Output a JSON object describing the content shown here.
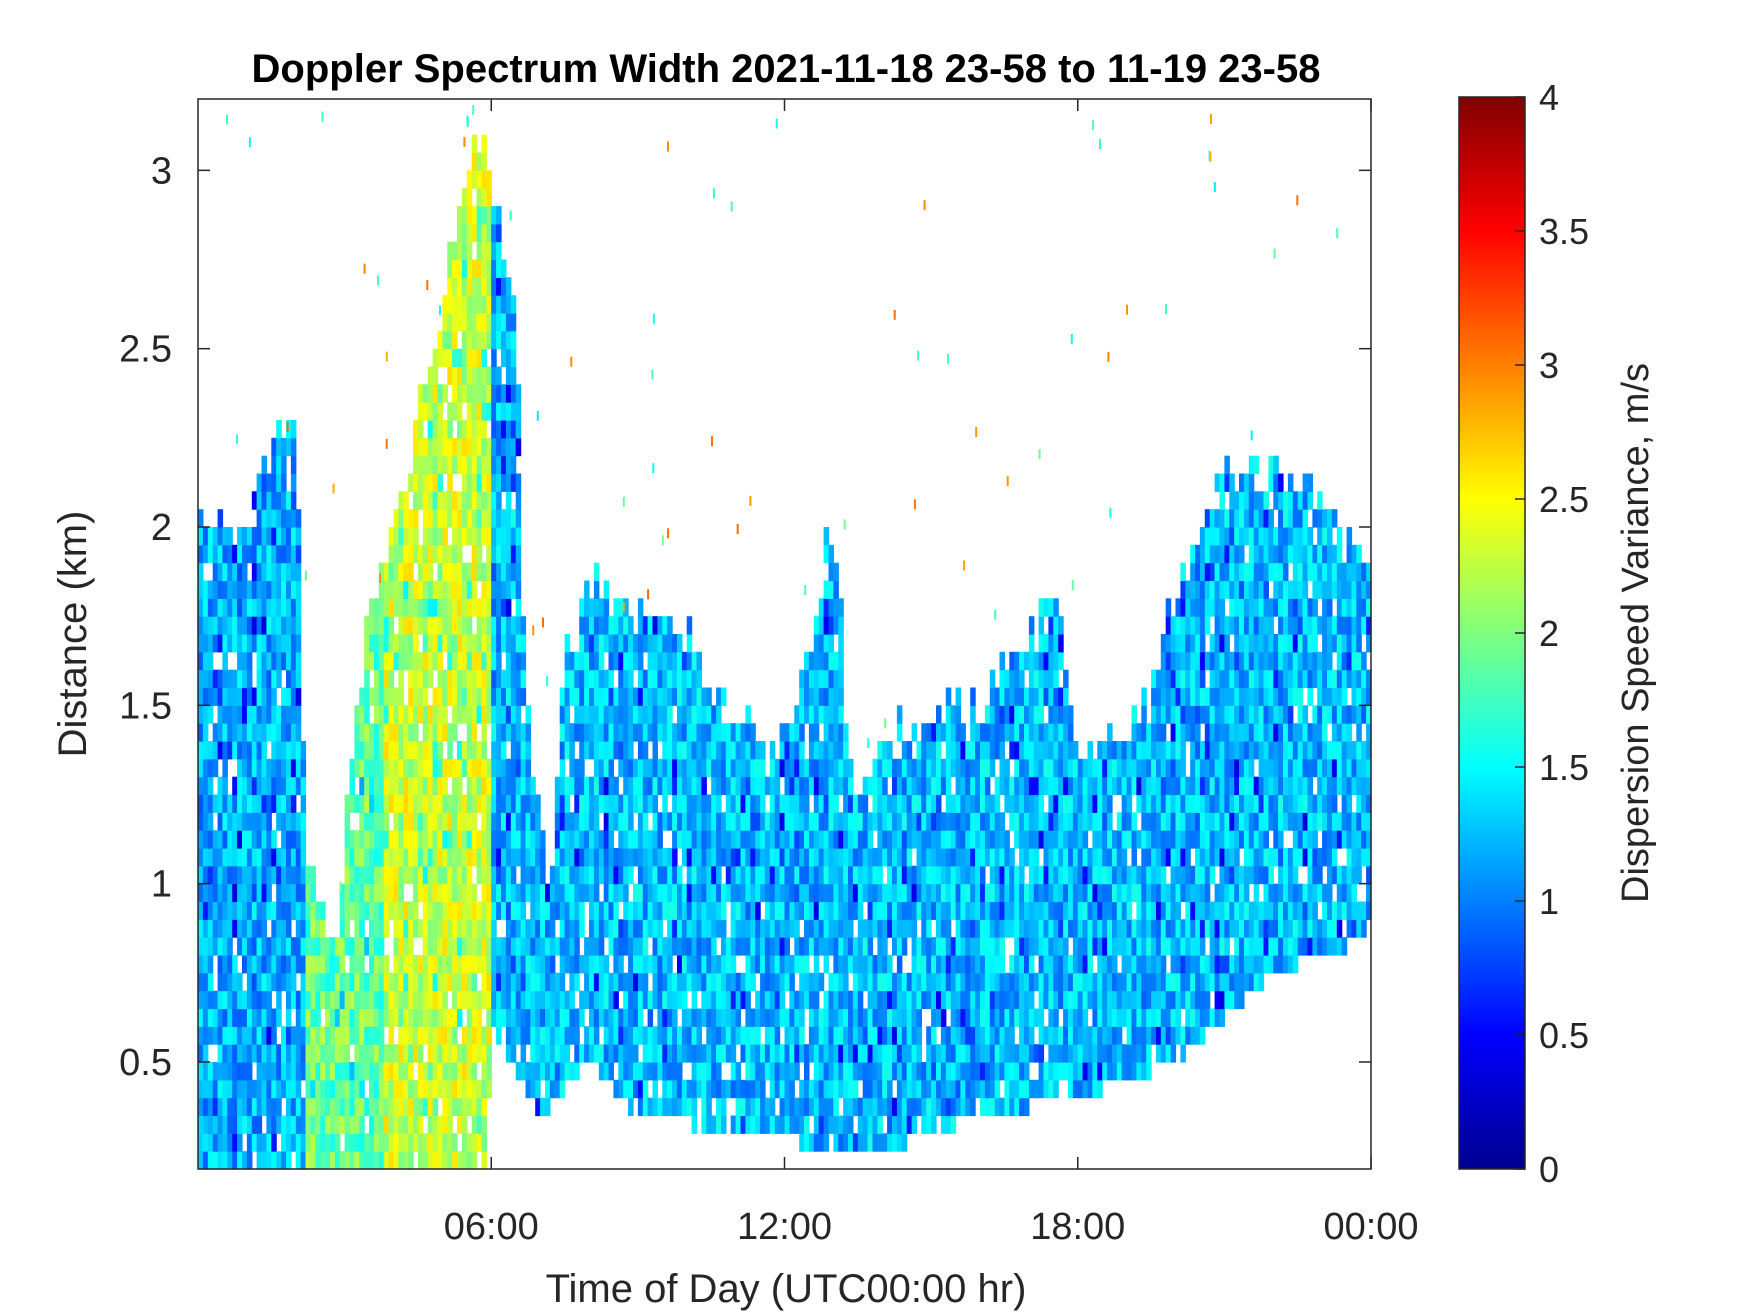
{
  "chart_data": {
    "type": "heatmap",
    "title": "Doppler Spectrum Width 2021-11-18 23-58 to 11-19 23-58",
    "xlabel": "Time of Day (UTC00:00 hr)",
    "ylabel": "Distance (km)",
    "x_ticks": [
      {
        "value": 6,
        "label": "06:00"
      },
      {
        "value": 12,
        "label": "12:00"
      },
      {
        "value": 18,
        "label": "18:00"
      },
      {
        "value": 24,
        "label": "00:00"
      }
    ],
    "y_ticks": [
      {
        "value": 0.5,
        "label": "0.5"
      },
      {
        "value": 1,
        "label": "1"
      },
      {
        "value": 1.5,
        "label": "1.5"
      },
      {
        "value": 2,
        "label": "2"
      },
      {
        "value": 2.5,
        "label": "2.5"
      },
      {
        "value": 3,
        "label": "3"
      }
    ],
    "xlim": [
      0,
      24
    ],
    "ylim": [
      0.2,
      3.2
    ],
    "colorbar": {
      "label": "Dispersion Speed Variance, m/s",
      "colormap": "jet",
      "range": [
        0,
        4
      ],
      "ticks": [
        {
          "value": 0,
          "label": "0"
        },
        {
          "value": 0.5,
          "label": "0.5"
        },
        {
          "value": 1,
          "label": "1"
        },
        {
          "value": 1.5,
          "label": "1.5"
        },
        {
          "value": 2,
          "label": "2"
        },
        {
          "value": 2.5,
          "label": "2.5"
        },
        {
          "value": 3,
          "label": "3"
        },
        {
          "value": 3.5,
          "label": "3.5"
        },
        {
          "value": 4,
          "label": "4"
        }
      ]
    },
    "coverage_top_km": [
      {
        "t": 0.0,
        "top": 2.02
      },
      {
        "t": 1.0,
        "top": 2.02
      },
      {
        "t": 1.5,
        "top": 2.2
      },
      {
        "t": 2.0,
        "top": 2.3
      },
      {
        "t": 2.2,
        "top": 1.1
      },
      {
        "t": 2.8,
        "top": 0.8
      },
      {
        "t": 3.3,
        "top": 1.6
      },
      {
        "t": 3.8,
        "top": 1.9
      },
      {
        "t": 4.5,
        "top": 2.3
      },
      {
        "t": 5.2,
        "top": 2.8
      },
      {
        "t": 5.8,
        "top": 3.1
      },
      {
        "t": 6.2,
        "top": 2.8
      },
      {
        "t": 6.5,
        "top": 2.7
      },
      {
        "t": 6.7,
        "top": 1.5
      },
      {
        "t": 7.2,
        "top": 1.0
      },
      {
        "t": 7.5,
        "top": 1.6
      },
      {
        "t": 8.0,
        "top": 1.85
      },
      {
        "t": 9.0,
        "top": 1.75
      },
      {
        "t": 10.0,
        "top": 1.7
      },
      {
        "t": 11.0,
        "top": 1.45
      },
      {
        "t": 12.0,
        "top": 1.4
      },
      {
        "t": 12.6,
        "top": 1.7
      },
      {
        "t": 13.0,
        "top": 2.05
      },
      {
        "t": 13.4,
        "top": 1.2
      },
      {
        "t": 14.0,
        "top": 1.4
      },
      {
        "t": 15.0,
        "top": 1.5
      },
      {
        "t": 16.0,
        "top": 1.5
      },
      {
        "t": 17.0,
        "top": 1.7
      },
      {
        "t": 17.5,
        "top": 1.85
      },
      {
        "t": 18.0,
        "top": 1.35
      },
      {
        "t": 19.0,
        "top": 1.4
      },
      {
        "t": 20.0,
        "top": 1.8
      },
      {
        "t": 21.0,
        "top": 2.15
      },
      {
        "t": 22.0,
        "top": 2.15
      },
      {
        "t": 23.0,
        "top": 2.1
      },
      {
        "t": 24.0,
        "top": 1.9
      }
    ],
    "coverage_bottom_km": [
      {
        "t": 0.0,
        "bottom": 0.2
      },
      {
        "t": 5.9,
        "bottom": 0.2
      },
      {
        "t": 6.0,
        "bottom": 0.6
      },
      {
        "t": 7.0,
        "bottom": 0.35
      },
      {
        "t": 8.0,
        "bottom": 0.5
      },
      {
        "t": 9.0,
        "bottom": 0.35
      },
      {
        "t": 12.0,
        "bottom": 0.28
      },
      {
        "t": 14.0,
        "bottom": 0.25
      },
      {
        "t": 16.0,
        "bottom": 0.35
      },
      {
        "t": 18.0,
        "bottom": 0.4
      },
      {
        "t": 20.0,
        "bottom": 0.5
      },
      {
        "t": 22.0,
        "bottom": 0.75
      },
      {
        "t": 24.0,
        "bottom": 0.85
      }
    ],
    "typical_values": [
      {
        "t_start": 0.0,
        "t_end": 2.2,
        "value": 1.2
      },
      {
        "t_start": 2.2,
        "t_end": 3.8,
        "value": 1.9
      },
      {
        "t_start": 3.8,
        "t_end": 6.0,
        "value": 2.3
      },
      {
        "t_start": 6.0,
        "t_end": 24.0,
        "value": 1.25
      }
    ]
  }
}
